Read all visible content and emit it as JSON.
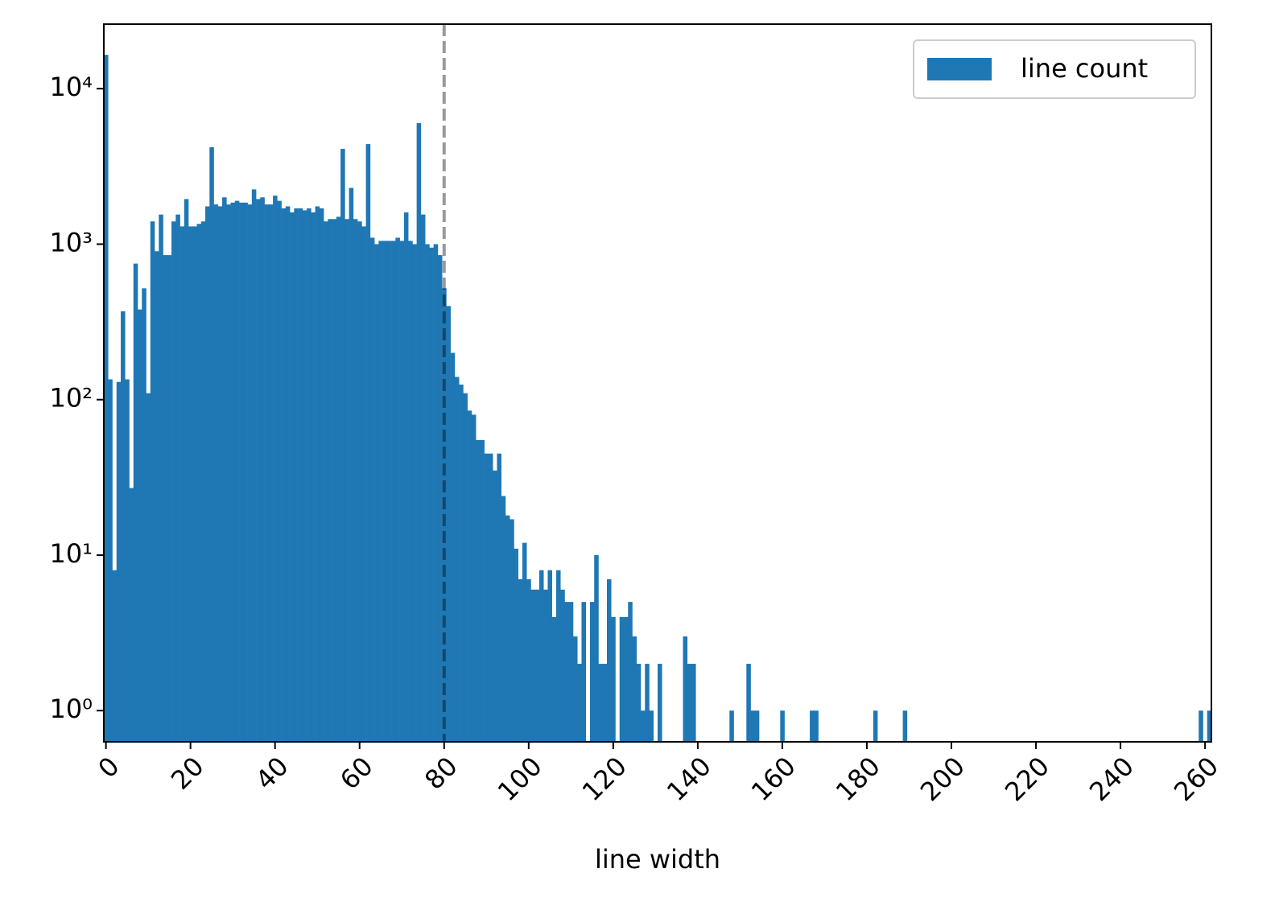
{
  "chart_data": {
    "type": "histogram",
    "xlabel": "line width",
    "bins": [
      -0.5,
      0.5,
      1.5,
      2.5,
      3.5,
      4.5,
      5.5,
      6.5,
      7.5,
      8.5,
      9.5,
      10.5,
      11.5,
      12.5,
      13.5,
      14.5,
      15.5,
      16.5,
      17.5,
      18.5,
      19.5,
      20.5,
      21.5,
      22.5,
      23.5,
      24.5,
      25.5,
      26.5,
      27.5,
      28.5,
      29.5,
      30.5,
      31.5,
      32.5,
      33.5,
      34.5,
      35.5,
      36.5,
      37.5,
      38.5,
      39.5,
      40.5,
      41.5,
      42.5,
      43.5,
      44.5,
      45.5,
      46.5,
      47.5,
      48.5,
      49.5,
      50.5,
      51.5,
      52.5,
      53.5,
      54.5,
      55.5,
      56.5,
      57.5,
      58.5,
      59.5,
      60.5,
      61.5,
      62.5,
      63.5,
      64.5,
      65.5,
      66.5,
      67.5,
      68.5,
      69.5,
      70.5,
      71.5,
      72.5,
      73.5,
      74.5,
      75.5,
      76.5,
      77.5,
      78.5,
      79.5,
      80.5,
      81.5,
      82.5,
      83.5,
      84.5,
      85.5,
      86.5,
      87.5,
      88.5,
      89.5,
      90.5,
      91.5,
      92.5,
      93.5,
      94.5,
      95.5,
      96.5,
      97.5,
      98.5,
      99.5,
      100.5,
      101.5,
      102.5,
      103.5,
      104.5,
      105.5,
      106.5,
      107.5,
      108.5,
      109.5,
      110.5,
      111.5,
      112.5,
      113.5,
      114.5,
      115.5,
      116.5,
      117.5,
      118.5,
      119.5,
      120.5,
      121.5,
      122.5,
      123.5,
      124.5,
      125.5,
      126.5,
      127.5,
      128.5,
      129.5,
      130.5,
      131.5,
      132.5,
      133.5,
      134.5,
      135.5,
      136.5,
      137.5,
      138.5,
      139.5,
      140.5,
      141.5,
      142.5,
      143.5,
      144.5,
      145.5,
      146.5,
      147.5,
      148.5,
      149.5,
      150.5,
      151.5,
      152.5,
      153.5,
      154.5,
      155.5,
      156.5,
      157.5,
      158.5,
      159.5,
      160.5,
      161.5,
      162.5,
      163.5,
      164.5,
      165.5,
      166.5,
      167.5,
      168.5,
      169.5,
      170.5,
      171.5,
      172.5,
      173.5,
      174.5,
      175.5,
      176.5,
      177.5,
      178.5,
      179.5,
      180.5,
      181.5,
      182.5,
      183.5,
      184.5,
      185.5,
      186.5,
      187.5,
      188.5,
      189.5,
      190.5,
      191.5,
      192.5,
      193.5,
      194.5,
      195.5,
      196.5,
      197.5,
      198.5,
      199.5,
      200.5,
      201.5,
      202.5,
      203.5,
      204.5,
      205.5,
      206.5,
      207.5,
      208.5,
      209.5,
      210.5,
      211.5,
      212.5,
      213.5,
      214.5,
      215.5,
      216.5,
      217.5,
      218.5,
      219.5,
      220.5,
      221.5,
      222.5,
      223.5,
      224.5,
      225.5,
      226.5,
      227.5,
      228.5,
      229.5,
      230.5,
      231.5,
      232.5,
      233.5,
      234.5,
      235.5,
      236.5,
      237.5,
      238.5,
      239.5,
      240.5,
      241.5,
      242.5,
      243.5,
      244.5,
      245.5,
      246.5,
      247.5,
      248.5,
      249.5,
      250.5,
      251.5,
      252.5,
      253.5,
      254.5,
      255.5,
      256.5,
      257.5,
      258.5,
      259.5,
      260.5,
      261.5
    ],
    "series": [
      {
        "name": "line count",
        "color": "#1f77b4",
        "values": [
          16500,
          135,
          8,
          130,
          370,
          135,
          27,
          750,
          380,
          520,
          110,
          1400,
          900,
          1550,
          850,
          850,
          1400,
          1550,
          1300,
          1950,
          1300,
          1300,
          1350,
          1400,
          1750,
          4200,
          1800,
          1750,
          2000,
          1800,
          1850,
          1900,
          1850,
          1850,
          1800,
          2250,
          1950,
          2000,
          1800,
          1800,
          2050,
          1900,
          1700,
          1750,
          1600,
          1700,
          1700,
          1650,
          1700,
          1600,
          1750,
          1700,
          1400,
          1450,
          1450,
          1500,
          4100,
          1450,
          2300,
          1450,
          1400,
          1300,
          4400,
          1100,
          1000,
          1050,
          1050,
          1050,
          1050,
          1100,
          1050,
          1600,
          1050,
          1000,
          6000,
          1550,
          1000,
          950,
          1000,
          850,
          520,
          400,
          200,
          140,
          125,
          110,
          85,
          80,
          55,
          55,
          45,
          45,
          35,
          45,
          24,
          18,
          17,
          11,
          7,
          12,
          7,
          6,
          6,
          8,
          6,
          8,
          4,
          8,
          6,
          5,
          5,
          3,
          2,
          5,
          0,
          5,
          10,
          2,
          2,
          7,
          4,
          0,
          4,
          4,
          5,
          3,
          2,
          1,
          2,
          1,
          0,
          2,
          0,
          0,
          0,
          0,
          0,
          3,
          2,
          2,
          0,
          0,
          0,
          0,
          0,
          0,
          0,
          0,
          1,
          0,
          0,
          0,
          2,
          1,
          1,
          0,
          0,
          0,
          0,
          0,
          1,
          0,
          0,
          0,
          0,
          0,
          0,
          1,
          1,
          0,
          0,
          0,
          0,
          0,
          0,
          0,
          0,
          0,
          0,
          0,
          0,
          0,
          1,
          0,
          0,
          0,
          0,
          0,
          0,
          1,
          0,
          0,
          0,
          0,
          0,
          0,
          0,
          0,
          0,
          0,
          0,
          0,
          0,
          0,
          0,
          0,
          0,
          0,
          0,
          0,
          0,
          0,
          0,
          0,
          0,
          0,
          0,
          0,
          0,
          0,
          0,
          0,
          0,
          0,
          0,
          0,
          0,
          0,
          0,
          0,
          0,
          0,
          0,
          0,
          0,
          0,
          0,
          0,
          0,
          0,
          0,
          0,
          0,
          0,
          0,
          0,
          0,
          0,
          0,
          0,
          0,
          0,
          0,
          0,
          0,
          0,
          0,
          0,
          0,
          1,
          0,
          1
        ]
      }
    ],
    "xlim": [
      -0.5,
      261.5
    ],
    "xticks": [
      0,
      20,
      40,
      60,
      80,
      100,
      120,
      140,
      160,
      180,
      200,
      220,
      240,
      260
    ],
    "ylim": [
      0.63,
      26000
    ],
    "yscale": "log",
    "yticks": [
      {
        "value": 1,
        "label": "10⁰"
      },
      {
        "value": 10,
        "label": "10¹"
      },
      {
        "value": 100,
        "label": "10²"
      },
      {
        "value": 1000,
        "label": "10³"
      },
      {
        "value": 10000,
        "label": "10⁴"
      }
    ],
    "vline": {
      "x": 80,
      "color": "#000000",
      "style": "dashed"
    },
    "legend": "upper right"
  }
}
